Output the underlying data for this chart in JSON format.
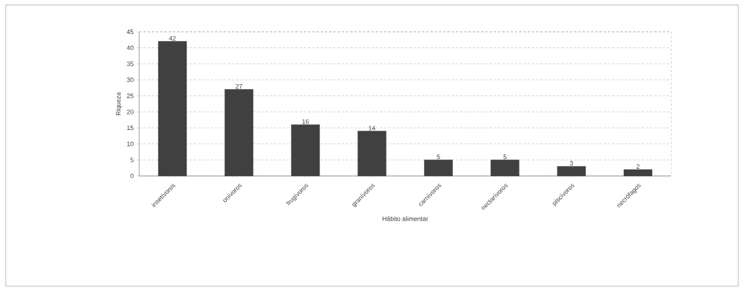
{
  "chart_data": {
    "type": "bar",
    "xlabel": "Hábito alimentar",
    "ylabel": "Riqueza",
    "categories": [
      "insetívoros",
      "onívoros",
      "frugívoros",
      "granívoros",
      "carnívoros",
      "nectarívoros",
      "piscívoros",
      "necrófagos"
    ],
    "values": [
      42,
      27,
      16,
      14,
      5,
      5,
      3,
      2
    ],
    "color": "#404040",
    "ylim": [
      0,
      45
    ],
    "yticks": [
      0,
      5,
      10,
      15,
      20,
      25,
      30,
      35,
      40,
      45
    ],
    "grid": "y",
    "data_labels": true
  }
}
